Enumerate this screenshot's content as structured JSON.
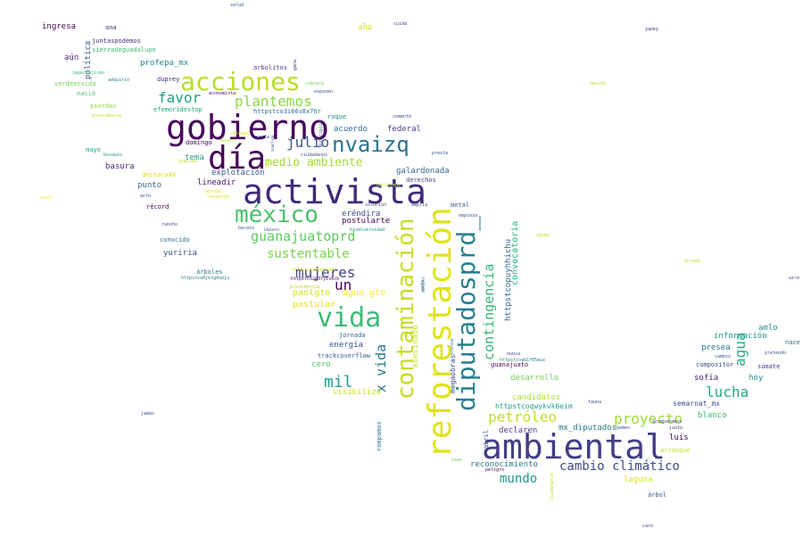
{
  "words": [
    {
      "text": "activista",
      "color": "#3f2a78"
    },
    {
      "text": "reforestación",
      "color": "#dfe31a"
    },
    {
      "text": "gobierno",
      "color": "#46075a"
    },
    {
      "text": "ambiental",
      "color": "#433e85"
    },
    {
      "text": "diputadosprd_",
      "color": "#277f8e"
    },
    {
      "text": "contaminación",
      "color": "#c2df23"
    },
    {
      "text": "día",
      "color": "#440154"
    },
    {
      "text": "vida",
      "color": "#3cbb75"
    },
    {
      "text": "méxico",
      "color": "#4ac16d"
    },
    {
      "text": "acciones",
      "color": "#b8de29"
    },
    {
      "text": "nvaizq",
      "color": "#2c728e"
    },
    {
      "text": "plantemos",
      "color": "#8fd744"
    },
    {
      "text": "favor",
      "color": "#20a386"
    },
    {
      "text": "julio",
      "color": "#3b528b"
    },
    {
      "text": "medio ambiente",
      "color": "#a5db36"
    },
    {
      "text": "guanajuatoprd",
      "color": "#5ec962"
    },
    {
      "text": "sustentable",
      "color": "#7ad151"
    },
    {
      "text": "mujeres",
      "color": "#414487"
    },
    {
      "text": "un",
      "color": "#440154"
    },
    {
      "text": "mil",
      "color": "#1f9e89"
    },
    {
      "text": "x vida",
      "color": "#2a788e"
    },
    {
      "text": "contingencia",
      "color": "#35b779"
    },
    {
      "text": "lucha",
      "color": "#22a884"
    },
    {
      "text": "agua",
      "color": "#29af7f"
    },
    {
      "text": "petróleo",
      "color": "#bddf26"
    },
    {
      "text": "proyecto",
      "color": "#a0da39"
    },
    {
      "text": "cambio climático",
      "color": "#3e4989"
    },
    {
      "text": "mundo",
      "color": "#1f968b"
    },
    {
      "text": "convocatoria",
      "color": "#2db27d"
    },
    {
      "text": "httpstcopuyhhichu",
      "color": "#31688e"
    },
    {
      "text": "paotgto",
      "color": "#d2e21b"
    },
    {
      "text": "agua_gto",
      "color": "#fde725"
    },
    {
      "text": "postular",
      "color": "#e5e419"
    },
    {
      "text": "acuerdo",
      "color": "#2d708e"
    },
    {
      "text": "federal",
      "color": "#404688"
    },
    {
      "text": "galardonada",
      "color": "#31688e"
    },
    {
      "text": "explotación",
      "color": "#38588c"
    },
    {
      "text": "eréndira",
      "color": "#3e4989"
    },
    {
      "text": "postularte",
      "color": "#46075a"
    },
    {
      "text": "energía",
      "color": "#3a548c"
    },
    {
      "text": "cero",
      "color": "#54c568"
    },
    {
      "text": "visibiliza",
      "color": "#d2e21b"
    },
    {
      "text": "asesinado",
      "color": "#c8e020"
    },
    {
      "text": "jornada",
      "color": "#31688e"
    },
    {
      "text": "trackcoverflow",
      "color": "#3b528b"
    },
    {
      "text": "desarrollo",
      "color": "#75d054"
    },
    {
      "text": "candidatos",
      "color": "#b5de2b"
    },
    {
      "text": "httpstcoqwykvk6eim",
      "color": "#1f9e89"
    },
    {
      "text": "declaren",
      "color": "#433e85"
    },
    {
      "text": "mx_diputados",
      "color": "#2a788e"
    },
    {
      "text": "reconocimiento",
      "color": "#2a768e"
    },
    {
      "text": "laguna",
      "color": "#d8e219"
    },
    {
      "text": "luis",
      "color": "#440154"
    },
    {
      "text": "arranque",
      "color": "#c0df25"
    },
    {
      "text": "blanco",
      "color": "#3fbc73"
    },
    {
      "text": "semarnat_mx",
      "color": "#3e4989"
    },
    {
      "text": "sofía",
      "color": "#482576"
    },
    {
      "text": "hoy",
      "color": "#21918c"
    },
    {
      "text": "presea",
      "color": "#2a788e"
    },
    {
      "text": "información",
      "color": "#1f968b"
    },
    {
      "text": "amlo",
      "color": "#21918c"
    },
    {
      "text": "ingresa",
      "color": "#440154"
    },
    {
      "text": "ana",
      "color": "#472d7b"
    },
    {
      "text": "política",
      "color": "#39568c"
    },
    {
      "text": "juntaspodemos",
      "color": "#482878"
    },
    {
      "text": "sierradeguadalupe",
      "color": "#3aba76"
    },
    {
      "text": "aún",
      "color": "#482878"
    },
    {
      "text": "profepa_mx",
      "color": "#25858e"
    },
    {
      "text": "año",
      "color": "#d8e219"
    },
    {
      "text": "arbolitos",
      "color": "#414487"
    },
    {
      "text": "duprey",
      "color": "#482475"
    },
    {
      "text": "verdeesvida",
      "color": "#6ece58"
    },
    {
      "text": "nació",
      "color": "#44bf70"
    },
    {
      "text": "pierdas",
      "color": "#90d743"
    },
    {
      "text": "efemeridestop",
      "color": "#21a585"
    },
    {
      "text": "httpstco3i66v8x7hr",
      "color": "#2d708e"
    },
    {
      "text": "roque",
      "color": "#228b8d"
    },
    {
      "text": "domingo",
      "color": "#440154"
    },
    {
      "text": "mayo",
      "color": "#20a486"
    },
    {
      "text": "basura",
      "color": "#482878"
    },
    {
      "text": "tema",
      "color": "#1fa188"
    },
    {
      "text": "lineadir",
      "color": "#471164"
    },
    {
      "text": "punto",
      "color": "#31688e"
    },
    {
      "text": "récord",
      "color": "#440154"
    },
    {
      "text": "yuriria",
      "color": "#3b528b"
    },
    {
      "text": "conocido",
      "color": "#2e6e8e"
    },
    {
      "text": "derechos",
      "color": "#414487"
    },
    {
      "text": "metal",
      "color": "#38598c"
    },
    {
      "text": "compositor",
      "color": "#3e4989"
    },
    {
      "text": "súmate",
      "color": "#414487"
    },
    {
      "text": "nace",
      "color": "#306a8e"
    },
    {
      "text": "salud",
      "color": "#39568c"
    },
    {
      "text": "cuida",
      "color": "#3e4989"
    },
    {
      "text": "yanky",
      "color": "#482878"
    },
    {
      "text": "httpstco6jkrgdsbjv",
      "color": "#2c728e"
    },
    {
      "text": "árboles",
      "color": "#2a788e"
    },
    {
      "text": "jamás",
      "color": "#3b528b"
    },
    {
      "text": "aire",
      "color": "#3e4989"
    },
    {
      "text": "árbol",
      "color": "#3b528b"
    },
    {
      "text": "caro",
      "color": "#3e4989"
    },
    {
      "text": "rompamos",
      "color": "#2a788e"
    },
    {
      "text": "abril",
      "color": "#3b528b"
    },
    {
      "text": "ciudadanía",
      "color": "#b5de2b"
    },
    {
      "text": "peligro",
      "color": "#440154"
    },
    {
      "text": "bien",
      "color": "#6ece58"
    },
    {
      "text": "fauna",
      "color": "#3b528b"
    },
    {
      "text": "pemex",
      "color": "#3e4989"
    },
    {
      "text": "justo",
      "color": "#482878"
    },
    {
      "text": "acompañamos",
      "color": "#3b528b"
    },
    {
      "text": "guanajuato",
      "color": "#46075a"
    },
    {
      "text": "httpstcoab1f05eux",
      "color": "#2a788e"
    },
    {
      "text": "nunca",
      "color": "#3e4989"
    },
    {
      "text": "empieza",
      "color": "#3b528b"
    },
    {
      "text": "biodiversidad",
      "color": "#21918c"
    },
    {
      "text": "lázaro",
      "color": "#3b528b"
    },
    {
      "text": "ciudadanos",
      "color": "#3b528b"
    },
    {
      "text": "cobrará",
      "color": "#6ece58"
    },
    {
      "text": "imperialismo",
      "color": "#3cbb75"
    },
    {
      "text": "adquirió",
      "color": "#2a788e"
    },
    {
      "text": "economista",
      "color": "#46075a"
    },
    {
      "text": "exponen",
      "color": "#3b528b"
    },
    {
      "text": "decidi",
      "color": "#b8de29"
    },
    {
      "text": "previamente",
      "color": "#b8de29"
    },
    {
      "text": "comenté",
      "color": "#3e4989"
    },
    {
      "text": "bosques",
      "color": "#1f9e89"
    },
    {
      "text": "gracias",
      "color": "#b8de29"
    },
    {
      "text": "destacada",
      "color": "#dde318"
    },
    {
      "text": "acto",
      "color": "#3b528b"
    },
    {
      "text": "rancho",
      "color": "#3b528b"
    },
    {
      "text": "barato",
      "color": "#3b528b"
    },
    {
      "text": "solución",
      "color": "#3e4989"
    },
    {
      "text": "amplia",
      "color": "#3b528b"
    },
    {
      "text": "presta",
      "color": "#3b528b"
    },
    {
      "text": "decidimos",
      "color": "#b5de2b"
    },
    {
      "text": "vuelo",
      "color": "#fde725"
    },
    {
      "text": "aprobó",
      "color": "#dde318"
    },
    {
      "text": "ayuda",
      "color": "#b8de29"
    },
    {
      "text": "acrede",
      "color": "#b8de29"
    },
    {
      "text": "gana",
      "color": "#482878"
    },
    {
      "text": "pretendo",
      "color": "#3b528b"
    },
    {
      "text": "cambio",
      "color": "#3b528b"
    },
    {
      "text": "sería",
      "color": "#3e4989"
    },
    {
      "text": "desear",
      "color": "#b8de29"
    },
    {
      "text": "soledad",
      "color": "#d8e219"
    },
    {
      "text": "respaldo",
      "color": "#d8e219"
    },
    {
      "text": "vuelva",
      "color": "#3b528b"
    },
    {
      "text": "mesinr",
      "color": "#21918c"
    },
    {
      "text": "httpstco2g37yivkck",
      "color": "#440154"
    },
    {
      "text": "httpstcoupnknnmh",
      "color": "#d8e219"
    },
    {
      "text": "megaobras",
      "color": "#3e4989"
    },
    {
      "text": "vota",
      "color": "#3b528b"
    },
    {
      "text": "presidencia",
      "color": "#b8de29"
    },
    {
      "text": "municipios",
      "color": "#3b528b"
    },
    {
      "text": "prensa",
      "color": "#2a788e"
    }
  ]
}
